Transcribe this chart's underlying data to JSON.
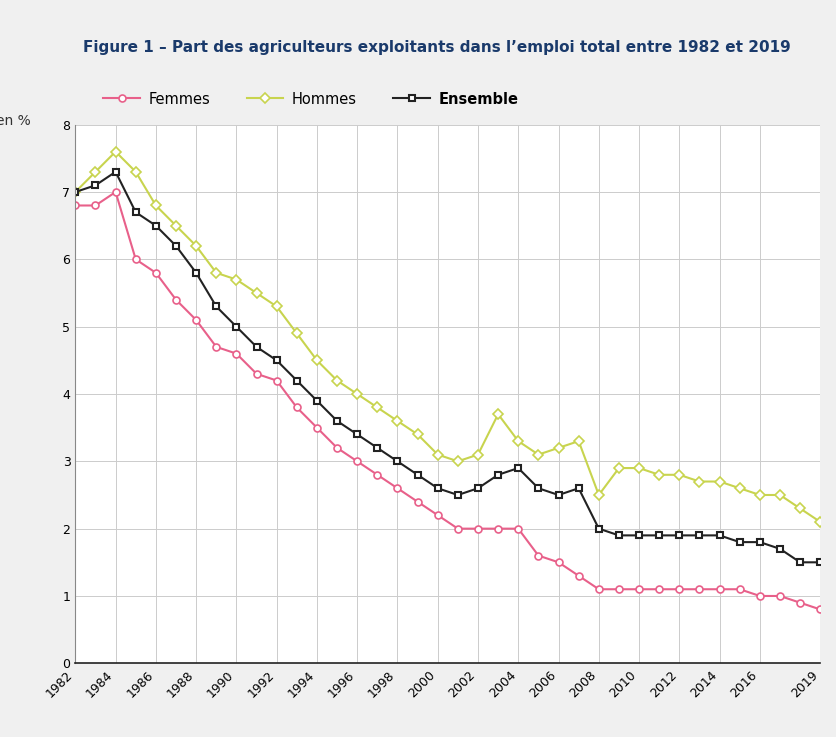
{
  "title": "Figure 1 – Part des agriculteurs exploitants dans l’emploi total entre 1982 et 2019",
  "ylabel": "en %",
  "ylim": [
    0,
    8
  ],
  "yticks": [
    0,
    1,
    2,
    3,
    4,
    5,
    6,
    7,
    8
  ],
  "outer_bg": "#f0f0f0",
  "plot_bg": "#ffffff",
  "title_color": "#1a3a6b",
  "grid_color": "#cccccc",
  "years": [
    1982,
    1983,
    1984,
    1985,
    1986,
    1987,
    1988,
    1989,
    1990,
    1991,
    1992,
    1993,
    1994,
    1995,
    1996,
    1997,
    1998,
    1999,
    2000,
    2001,
    2002,
    2003,
    2004,
    2005,
    2006,
    2007,
    2008,
    2009,
    2010,
    2011,
    2012,
    2013,
    2014,
    2015,
    2016,
    2017,
    2018,
    2019
  ],
  "femmes": [
    6.8,
    6.8,
    7.0,
    6.0,
    5.8,
    5.4,
    5.1,
    4.7,
    4.6,
    4.3,
    4.2,
    3.8,
    3.5,
    3.2,
    3.0,
    2.8,
    2.6,
    2.4,
    2.2,
    2.0,
    2.0,
    2.0,
    2.0,
    1.6,
    1.5,
    1.3,
    1.1,
    1.1,
    1.1,
    1.1,
    1.1,
    1.1,
    1.1,
    1.1,
    1.0,
    1.0,
    0.9,
    0.8
  ],
  "hommes": [
    7.0,
    7.3,
    7.6,
    7.3,
    6.8,
    6.5,
    6.2,
    5.8,
    5.7,
    5.5,
    5.3,
    4.9,
    4.5,
    4.2,
    4.0,
    3.8,
    3.6,
    3.4,
    3.1,
    3.0,
    3.1,
    3.7,
    3.3,
    3.1,
    3.2,
    3.3,
    2.5,
    2.9,
    2.9,
    2.8,
    2.8,
    2.7,
    2.7,
    2.6,
    2.5,
    2.5,
    2.3,
    2.1
  ],
  "ensemble": [
    7.0,
    7.1,
    7.3,
    6.7,
    6.5,
    6.2,
    5.8,
    5.3,
    5.0,
    4.7,
    4.5,
    4.2,
    3.9,
    3.6,
    3.4,
    3.2,
    3.0,
    2.8,
    2.6,
    2.5,
    2.6,
    2.8,
    2.9,
    2.6,
    2.5,
    2.6,
    2.0,
    1.9,
    1.9,
    1.9,
    1.9,
    1.9,
    1.9,
    1.8,
    1.8,
    1.7,
    1.5,
    1.5
  ],
  "femmes_color": "#e8608a",
  "hommes_color": "#c8d44e",
  "ensemble_color": "#222222",
  "femmes_marker": "o",
  "hommes_marker": "D",
  "ensemble_marker": "s",
  "xticks": [
    1982,
    1984,
    1986,
    1988,
    1990,
    1992,
    1994,
    1996,
    1998,
    2000,
    2002,
    2004,
    2006,
    2008,
    2010,
    2012,
    2014,
    2016,
    2019
  ],
  "legend_femmes": "Femmes",
  "legend_hommes": "Hommes",
  "legend_ensemble": "Ensemble"
}
